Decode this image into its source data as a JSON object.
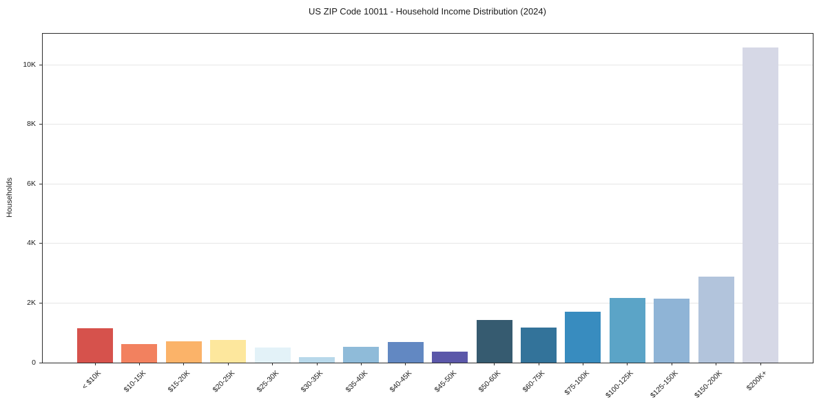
{
  "window": {
    "title": "US ZIP Code 10011 - Household Income Distribution (2024)"
  },
  "chart_data": {
    "type": "bar",
    "title": "US ZIP Code 10011 - Household Income Distribution (2024)",
    "xlabel": "",
    "ylabel": "Households",
    "categories": [
      "< $10K",
      "$10-15K",
      "$15-20K",
      "$20-25K",
      "$25-30K",
      "$30-35K",
      "$35-40K",
      "$40-45K",
      "$45-50K",
      "$50-60K",
      "$60-75K",
      "$75-100K",
      "$100-125K",
      "$125-150K",
      "$150-200K",
      "$200K+"
    ],
    "values": [
      1150,
      620,
      710,
      770,
      500,
      190,
      530,
      690,
      370,
      1440,
      1170,
      1700,
      2180,
      2160,
      2900,
      10580
    ],
    "bar_colors": [
      "#d6524c",
      "#f2815f",
      "#fbb369",
      "#fde79d",
      "#e3f2f8",
      "#b8d8ea",
      "#8fbbd9",
      "#6288c2",
      "#5b57a9",
      "#365b70",
      "#33739a",
      "#388cbf",
      "#5ba4c7",
      "#8fb4d6",
      "#b2c4dc",
      "#d6d8e6"
    ],
    "ylim": [
      0,
      11050
    ],
    "yticks": [
      {
        "value": 0,
        "label": "0"
      },
      {
        "value": 2000,
        "label": "2K"
      },
      {
        "value": 4000,
        "label": "4K"
      },
      {
        "value": 6000,
        "label": "6K"
      },
      {
        "value": 8000,
        "label": "8K"
      },
      {
        "value": 10000,
        "label": "10K"
      }
    ],
    "grid": "horizontal",
    "legend": "none"
  },
  "colors": {
    "background": "#ffffff",
    "grid": "#e6e6e6",
    "axis": "#2b2b2b",
    "text": "#1a1a1a"
  }
}
